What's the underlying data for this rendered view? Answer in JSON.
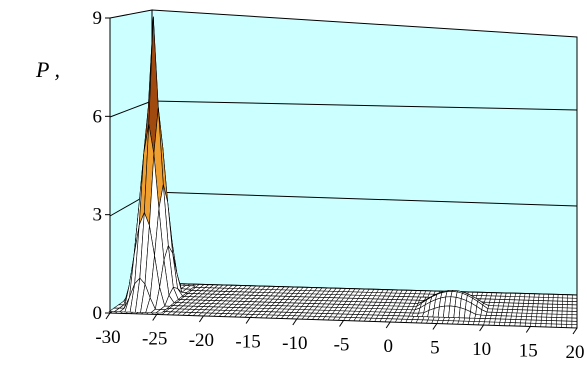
{
  "chart_data": {
    "type": "surface",
    "title": "",
    "zlabel": "P ,",
    "x_ticks": [
      "-30",
      "-25",
      "-20",
      "-15",
      "-10",
      "-5",
      "0",
      "5",
      "10",
      "15",
      "20"
    ],
    "z_ticks": [
      "0",
      "3",
      "6",
      "9"
    ],
    "zlim": [
      0,
      9
    ],
    "xlim": [
      -30,
      20
    ],
    "grid": true,
    "colors": {
      "back_wall": "#ccffff",
      "surface": "#ffffff",
      "band_3_6": "#f0a030",
      "band_6_9": "#a04a10"
    },
    "peaks": [
      {
        "x": -27.5,
        "height": 8.6
      },
      {
        "x": 6,
        "height": 0.5
      }
    ]
  }
}
